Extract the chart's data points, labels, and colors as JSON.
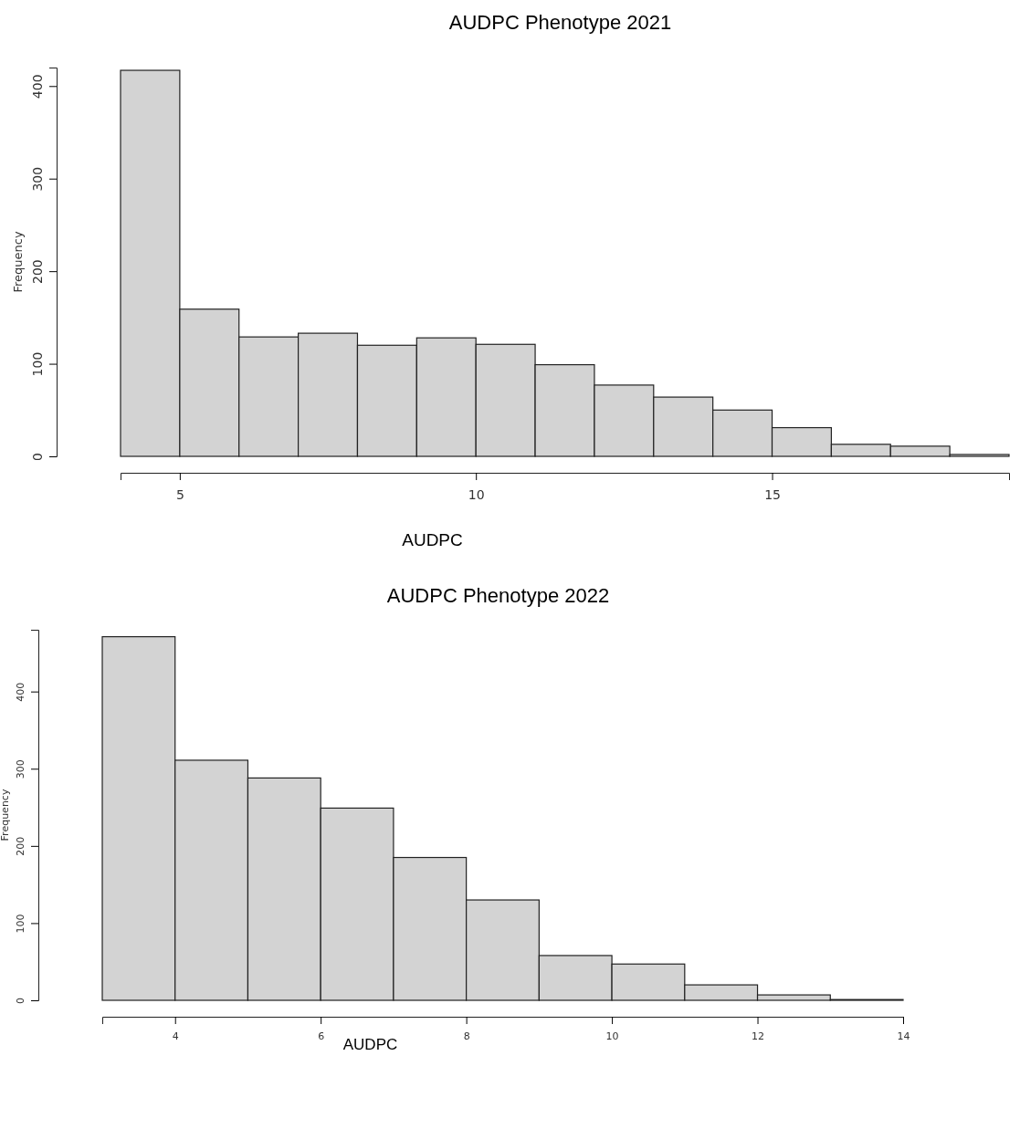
{
  "chart_data": [
    {
      "type": "histogram",
      "title": "AUDPC Phenotype 2021",
      "xlabel": "AUDPC",
      "ylabel": "Frequency",
      "bins": [
        4,
        5,
        6,
        7,
        8,
        9,
        10,
        11,
        12,
        13,
        14,
        15,
        16,
        17,
        18,
        19
      ],
      "values": [
        417,
        159,
        129,
        133,
        120,
        128,
        121,
        99,
        77,
        64,
        50,
        31,
        13,
        11,
        2
      ],
      "color": "#d3d3d3",
      "xlim": [
        4,
        19
      ],
      "ylim": [
        0,
        420
      ],
      "xticks": [
        5,
        10,
        15
      ],
      "yticks": [
        0,
        100,
        200,
        300,
        400
      ],
      "grid": false
    },
    {
      "type": "histogram",
      "title": "AUDPC Phenotype 2022",
      "xlabel": "AUDPC",
      "ylabel": "Frequency",
      "bins": [
        3,
        4,
        5,
        6,
        7,
        8,
        9,
        10,
        11,
        12,
        13,
        14
      ],
      "values": [
        471,
        311,
        288,
        249,
        185,
        130,
        58,
        47,
        20,
        7,
        1
      ],
      "color": "#d3d3d3",
      "xlim": [
        3,
        14
      ],
      "ylim": [
        0,
        480
      ],
      "xticks": [
        4,
        6,
        8,
        10,
        12,
        14
      ],
      "yticks": [
        0,
        100,
        200,
        300,
        400
      ],
      "grid": false
    }
  ]
}
